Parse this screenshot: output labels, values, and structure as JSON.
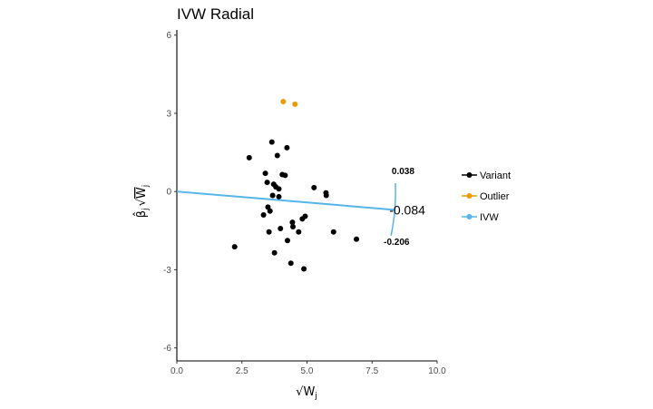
{
  "chart_data": {
    "type": "scatter",
    "title": "IVW Radial",
    "xlabel": "√W",
    "xlabel_sub": "j",
    "ylabel_beta": "β̂",
    "ylabel_sub": "j",
    "ylabel_w": "W",
    "xlim": [
      0,
      10
    ],
    "ylim": [
      -6.5,
      6.2
    ],
    "xticks": [
      0,
      2.5,
      5,
      7.5,
      10
    ],
    "xtick_labels": [
      "0.0",
      "2.5",
      "5.0",
      "7.5",
      "10.0"
    ],
    "yticks": [
      -6,
      -3,
      0,
      3,
      6
    ],
    "ytick_labels": [
      "-6",
      "-3",
      "0",
      "3",
      "6"
    ],
    "grid": false,
    "legend_position": "right",
    "legend": [
      {
        "label": "Variant",
        "color": "#000000"
      },
      {
        "label": "Outlier",
        "color": "#E69F00"
      },
      {
        "label": "IVW",
        "color": "#56B4E9"
      }
    ],
    "series": [
      {
        "name": "Variant",
        "color": "#000000",
        "points": [
          [
            2.22,
            -2.12
          ],
          [
            2.78,
            1.3
          ],
          [
            3.33,
            -0.9
          ],
          [
            3.4,
            0.7
          ],
          [
            3.47,
            0.35
          ],
          [
            3.5,
            -0.6
          ],
          [
            3.54,
            -1.55
          ],
          [
            3.58,
            -0.75
          ],
          [
            3.65,
            1.9
          ],
          [
            3.68,
            -0.15
          ],
          [
            3.72,
            0.28
          ],
          [
            3.75,
            -2.35
          ],
          [
            3.8,
            0.18
          ],
          [
            3.86,
            1.38
          ],
          [
            3.92,
            0.1
          ],
          [
            3.92,
            -0.2
          ],
          [
            3.98,
            -1.42
          ],
          [
            4.05,
            0.65
          ],
          [
            4.16,
            0.62
          ],
          [
            4.23,
            1.68
          ],
          [
            4.25,
            -1.88
          ],
          [
            4.38,
            -2.75
          ],
          [
            4.44,
            -1.18
          ],
          [
            4.46,
            -1.35
          ],
          [
            4.68,
            -1.55
          ],
          [
            4.82,
            -1.05
          ],
          [
            4.88,
            -2.97
          ],
          [
            4.93,
            -0.95
          ],
          [
            5.27,
            0.15
          ],
          [
            5.73,
            -0.05
          ],
          [
            5.74,
            -0.15
          ],
          [
            6.02,
            -1.55
          ],
          [
            6.9,
            -1.83
          ]
        ]
      },
      {
        "name": "Outlier",
        "color": "#E69F00",
        "points": [
          [
            4.09,
            3.45
          ],
          [
            4.54,
            3.35
          ]
        ]
      }
    ],
    "ivw": {
      "color": "#56B4E9",
      "slope": -0.084,
      "line_x_end": 8.4,
      "ci_upper": 0.038,
      "ci_lower": -0.206
    },
    "annotations": {
      "estimate": "-0.084",
      "upper": "0.038",
      "lower": "-0.206"
    }
  }
}
